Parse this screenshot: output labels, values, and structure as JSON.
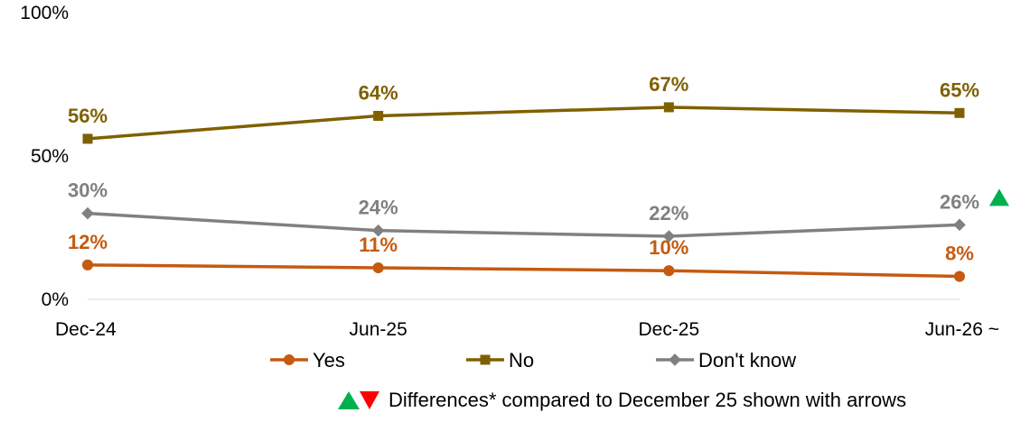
{
  "chart_data": {
    "type": "line",
    "categories": [
      "Dec-24",
      "Jun-25",
      "Dec-25",
      "Jun-26 ~"
    ],
    "ylim": [
      0,
      100
    ],
    "yticks": [
      "0%",
      "50%",
      "100%"
    ],
    "grid": false,
    "legend_position": "bottom",
    "series": [
      {
        "name": "Yes",
        "values": [
          12,
          11,
          10,
          8
        ],
        "labels": [
          "12%",
          "11%",
          "10%",
          "8%"
        ],
        "color": "#c55a11",
        "marker": "circle"
      },
      {
        "name": "No",
        "values": [
          56,
          64,
          67,
          65
        ],
        "labels": [
          "56%",
          "64%",
          "67%",
          "65%"
        ],
        "color": "#7f6000",
        "marker": "square"
      },
      {
        "name": "Don't know",
        "values": [
          30,
          24,
          22,
          26
        ],
        "labels": [
          "30%",
          "24%",
          "22%",
          "26%"
        ],
        "color": "#808080",
        "marker": "diamond"
      }
    ],
    "annotations": [
      {
        "series": "Don't know",
        "category": "Jun-26 ~",
        "arrow": "up",
        "color": "#00b050"
      }
    ]
  },
  "footnote": {
    "text": "Differences* compared to December 25 shown with arrows",
    "up_arrow_color": "#00b050",
    "down_arrow_color": "#ff0000"
  }
}
